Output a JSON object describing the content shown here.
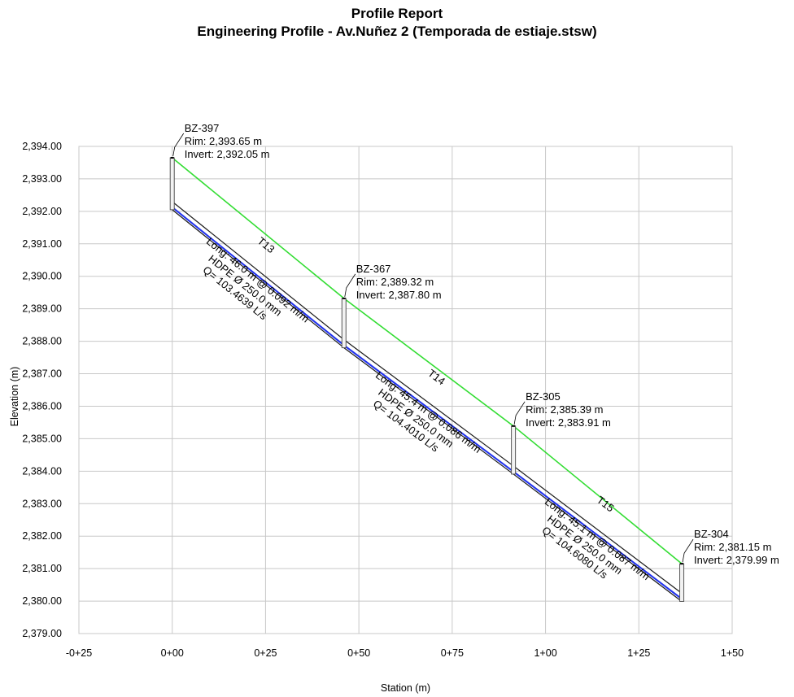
{
  "report": {
    "title": "Profile Report",
    "subtitle": "Engineering Profile - Av.Nuñez 2 (Temporada de estiaje.stsw)"
  },
  "colors": {
    "grid": "#c8c8c8",
    "ground": "#33dd33",
    "pipe_crown": "#1a1a1a",
    "pipe_water": "#2233ee",
    "manhole": "#555555"
  },
  "chart_data": {
    "type": "line",
    "xlabel": "Station (m)",
    "ylabel": "Elevation (m)",
    "xlim": [
      -25,
      150
    ],
    "ylim": [
      2379,
      2394
    ],
    "grid": true,
    "x_ticks": [
      -25,
      0,
      25,
      50,
      75,
      100,
      125,
      150
    ],
    "x_tick_labels": [
      "-0+25",
      "0+00",
      "0+25",
      "0+50",
      "0+75",
      "1+00",
      "1+25",
      "1+50"
    ],
    "y_ticks": [
      2379,
      2380,
      2381,
      2382,
      2383,
      2384,
      2385,
      2386,
      2387,
      2388,
      2389,
      2390,
      2391,
      2392,
      2393,
      2394
    ],
    "y_tick_labels": [
      "2,379.00",
      "2,380.00",
      "2,381.00",
      "2,382.00",
      "2,383.00",
      "2,384.00",
      "2,385.00",
      "2,386.00",
      "2,387.00",
      "2,388.00",
      "2,389.00",
      "2,390.00",
      "2,391.00",
      "2,392.00",
      "2,393.00",
      "2,394.00"
    ],
    "manholes": [
      {
        "id": "BZ-397",
        "station": 0.0,
        "rim": 2393.65,
        "invert": 2392.05,
        "label": "BZ-397",
        "rim_text": "Rim: 2,393.65 m",
        "invert_text": "Invert: 2,392.05 m"
      },
      {
        "id": "BZ-367",
        "station": 46.0,
        "rim": 2389.32,
        "invert": 2387.8,
        "label": "BZ-367",
        "rim_text": "Rim: 2,389.32 m",
        "invert_text": "Invert: 2,387.80 m"
      },
      {
        "id": "BZ-305",
        "station": 91.4,
        "rim": 2385.39,
        "invert": 2383.91,
        "label": "BZ-305",
        "rim_text": "Rim: 2,385.39 m",
        "invert_text": "Invert: 2,383.91 m"
      },
      {
        "id": "BZ-304",
        "station": 136.5,
        "rim": 2381.15,
        "invert": 2379.99,
        "label": "BZ-304",
        "rim_text": "Rim: 2,381.15 m",
        "invert_text": "Invert: 2,379.99 m"
      }
    ],
    "pipes": [
      {
        "name": "T13",
        "from_station": 0.0,
        "to_station": 46.0,
        "up_invert": 2392.05,
        "down_invert": 2387.8,
        "diameter_m": 0.25,
        "length_text": "Long: 46.0 m @ 0.092 m/m",
        "material_text": "HDPE Ø 250.0 mm",
        "flow_text": "Q= 103.4639 L/s"
      },
      {
        "name": "T14",
        "from_station": 46.0,
        "to_station": 91.4,
        "up_invert": 2387.8,
        "down_invert": 2383.91,
        "diameter_m": 0.25,
        "length_text": "Long: 45.4 m @ 0.086 m/m",
        "material_text": "HDPE Ø 250.0 mm",
        "flow_text": "Q= 104.4010 L/s"
      },
      {
        "name": "T15",
        "from_station": 91.4,
        "to_station": 136.5,
        "up_invert": 2383.91,
        "down_invert": 2379.99,
        "diameter_m": 0.25,
        "length_text": "Long: 45.1 m @ 0.087 m/m",
        "material_text": "HDPE Ø 250.0 mm",
        "flow_text": "Q= 104.6080 L/s"
      }
    ]
  }
}
